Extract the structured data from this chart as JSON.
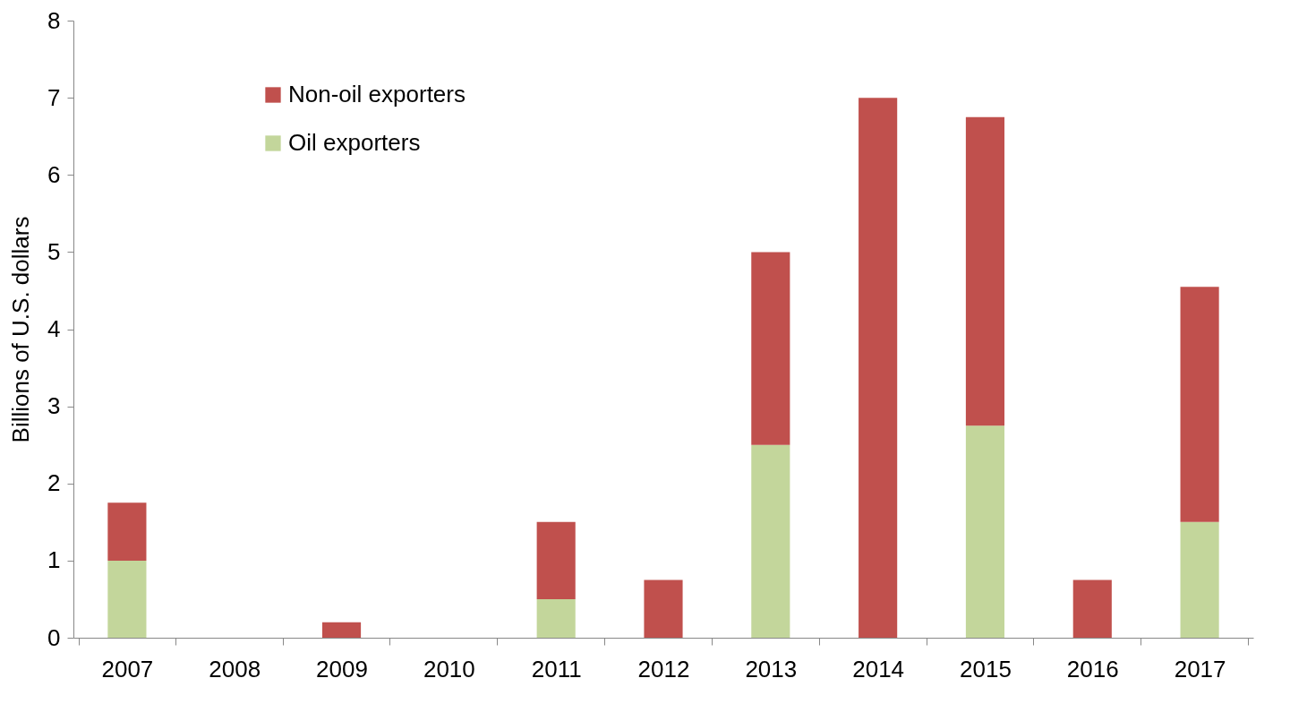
{
  "chart_data": {
    "type": "bar",
    "stacked": true,
    "ylabel": "Billions of U.S. dollars",
    "categories": [
      "2007",
      "2008",
      "2009",
      "2010",
      "2011",
      "2012",
      "2013",
      "2014",
      "2015",
      "2016",
      "2017"
    ],
    "series": [
      {
        "name": "Oil exporters",
        "color": "#c3d69b",
        "values": [
          1.0,
          0,
          0,
          0,
          0.5,
          0,
          2.5,
          0,
          2.75,
          0,
          1.5
        ]
      },
      {
        "name": "Non-oil exporters",
        "color": "#c0504d",
        "values": [
          0.75,
          0,
          0.2,
          0,
          1.0,
          0.75,
          2.5,
          7.0,
          4.0,
          0.75,
          3.05
        ]
      }
    ],
    "ylim": [
      0,
      8
    ],
    "yticks": [
      0,
      1,
      2,
      3,
      4,
      5,
      6,
      7,
      8
    ],
    "grid": false,
    "legend": "top left"
  }
}
